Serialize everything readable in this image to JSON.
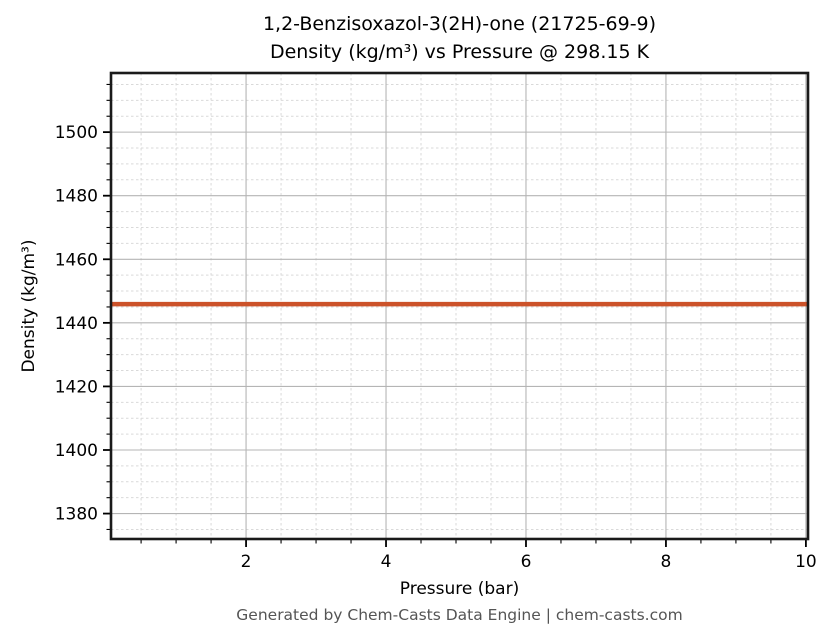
{
  "chart_data": {
    "type": "line",
    "title": "1,2-Benzisoxazol-3(2H)-one (21725-69-9)",
    "subtitle": "Density (kg/m³) vs Pressure @ 298.15 K",
    "xlabel": "Pressure (bar)",
    "ylabel": "Density (kg/m³)",
    "xlim": [
      0.07,
      10.03
    ],
    "ylim": [
      1372,
      1518.6
    ],
    "x_tick_values": [
      2,
      4,
      6,
      8,
      10
    ],
    "x_tick_labels": [
      "2",
      "4",
      "6",
      "8",
      "10"
    ],
    "y_tick_values": [
      1380,
      1400,
      1420,
      1440,
      1460,
      1480,
      1500
    ],
    "y_tick_labels": [
      "1380",
      "1400",
      "1420",
      "1440",
      "1460",
      "1480",
      "1500"
    ],
    "x_minor_step": 0.5,
    "y_minor_step": 5,
    "grid": {
      "major": true,
      "minor": true
    },
    "legend": "none",
    "series": [
      {
        "name": "Density @ 298.15 K",
        "color": "#cc5229",
        "line_width": 4.5,
        "x": [
          0.07,
          10.03
        ],
        "y": [
          1445.9,
          1445.9
        ],
        "constant_value": 1445.9,
        "units": "kg/m³"
      }
    ]
  },
  "footer": {
    "text": "Generated by Chem-Casts Data Engine | chem-casts.com"
  }
}
